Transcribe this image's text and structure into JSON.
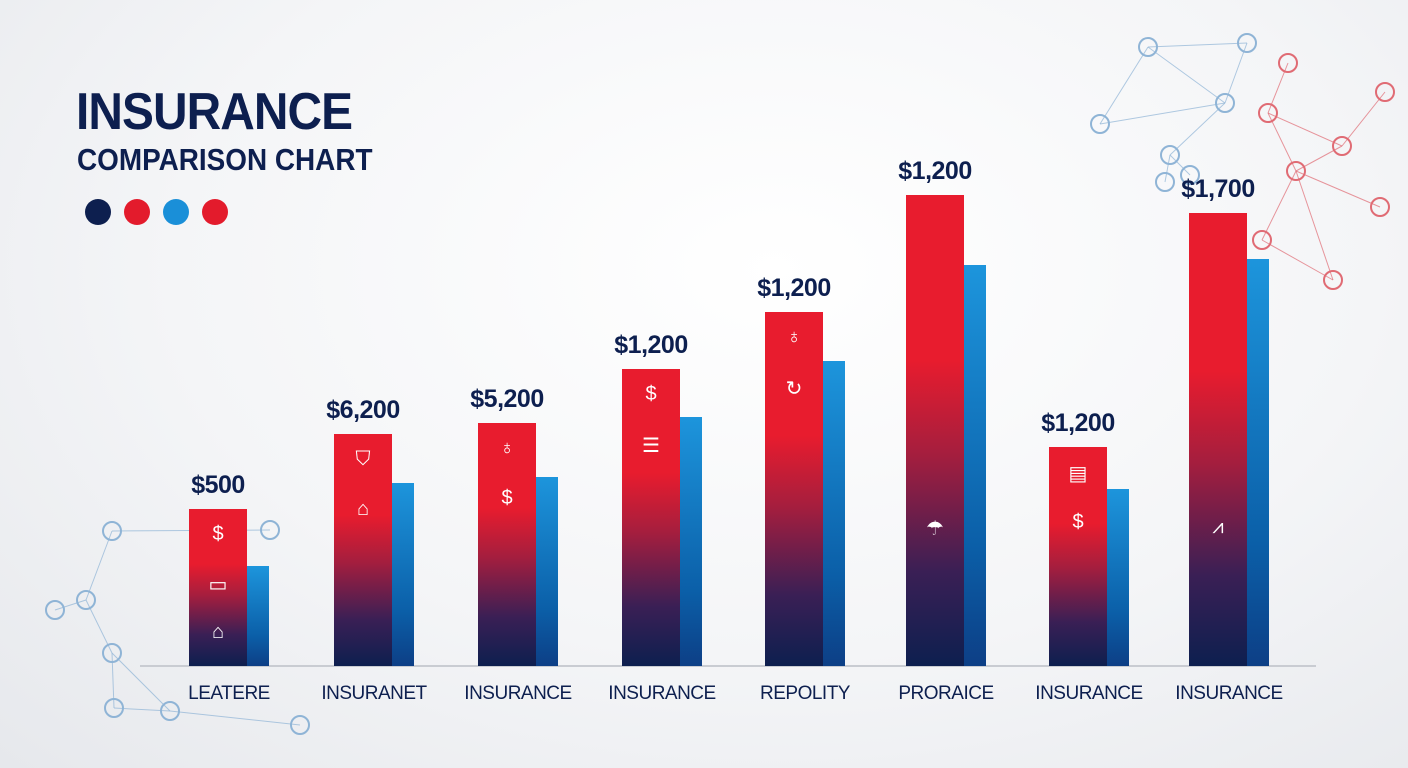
{
  "chart_data": {
    "type": "bar",
    "title": "INSURANCE",
    "subtitle": "COMPARISON CHART",
    "categories": [
      "LEATERE",
      "INSURANET",
      "INSURANCE",
      "INSURANCE",
      "REPOLITY",
      "PRORAICE",
      "INSURANCE",
      "INSURANCE"
    ],
    "value_labels": [
      "$500",
      "$6,200",
      "$5,200",
      "$1,200",
      "$1,200",
      "$1,200",
      "$1,200",
      "$1,700"
    ],
    "values": [
      500,
      6200,
      5200,
      1200,
      1200,
      1200,
      1200,
      1700
    ],
    "icons": [
      [
        "dollar-icon",
        "wallet-icon",
        "home-icon"
      ],
      [
        "shield-icon",
        "home-icon"
      ],
      [
        "piggy-bank-icon",
        "dollar-icon"
      ],
      [
        "dollar-icon",
        "document-icon"
      ],
      [
        "piggy-bank-icon",
        "refresh-icon"
      ],
      [
        "umbrella-icon"
      ],
      [
        "invoice-icon",
        "dollar-icon"
      ],
      [
        "chart-icon"
      ]
    ],
    "legend_colors": [
      "#0d1f4f",
      "#e31b2c",
      "#1a8fd8",
      "#e31b2c"
    ],
    "colors": {
      "primary": "#e81c2e",
      "secondary": "#1d95dc",
      "base": "#0d1f4f"
    },
    "grid": false
  }
}
